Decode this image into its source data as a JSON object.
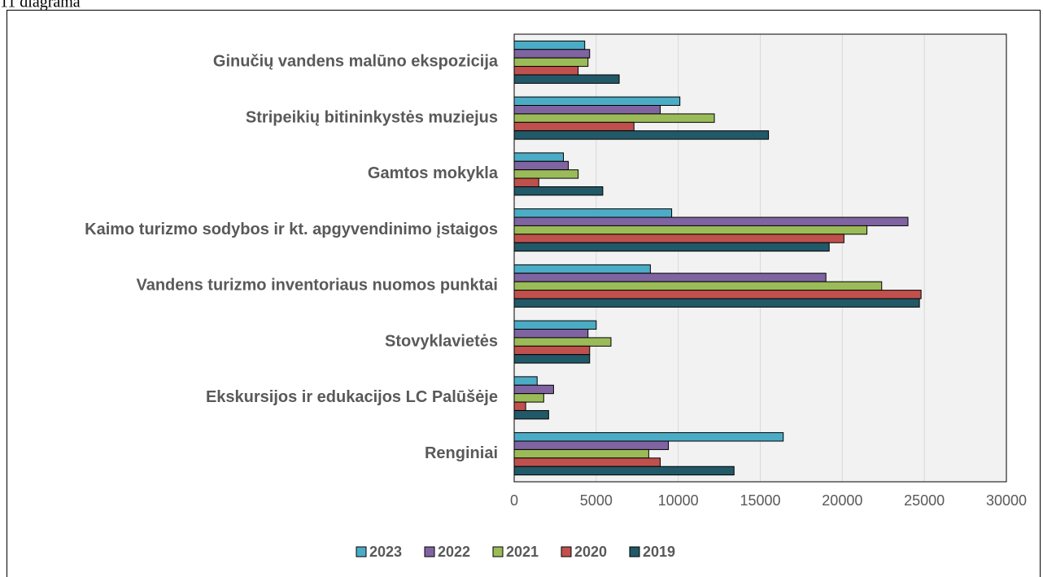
{
  "chart_data": {
    "type": "bar",
    "orientation": "horizontal",
    "title": "11 diagrama",
    "categories": [
      "Ginučių vandens malūno ekspozicija",
      "Stripeikių bitininkystės muziejus",
      "Gamtos mokykla",
      "Kaimo turizmo sodybos ir kt. apgyvendinimo įstaigos",
      "Vandens turizmo inventoriaus nuomos punktai",
      "Stovyklavietės",
      "Ekskursijos ir edukacijos LC Palūšėje",
      "Renginiai"
    ],
    "series": [
      {
        "name": "2023",
        "color": "#4bacc6",
        "values": [
          4300,
          10100,
          3000,
          9600,
          8300,
          5000,
          1400,
          16400
        ]
      },
      {
        "name": "2022",
        "color": "#8064a2",
        "values": [
          4600,
          8900,
          3300,
          24000,
          19000,
          4500,
          2400,
          9400
        ]
      },
      {
        "name": "2021",
        "color": "#9bbb59",
        "values": [
          4500,
          12200,
          3900,
          21500,
          22400,
          5900,
          1800,
          8200
        ]
      },
      {
        "name": "2020",
        "color": "#c0504d",
        "values": [
          3900,
          7300,
          1500,
          20100,
          24800,
          4600,
          700,
          8900
        ]
      },
      {
        "name": "2019",
        "color": "#215968",
        "values": [
          6400,
          15500,
          5400,
          19200,
          24700,
          4600,
          2100,
          13400
        ]
      }
    ],
    "xlim": [
      0,
      30000
    ],
    "xticks": [
      0,
      5000,
      10000,
      15000,
      20000,
      25000,
      30000
    ],
    "grid": true,
    "legend": "bottom"
  }
}
